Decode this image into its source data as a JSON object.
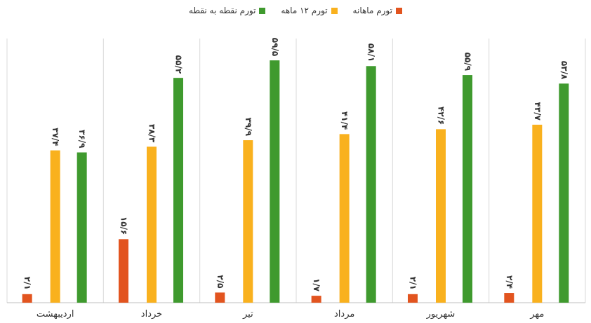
{
  "chart_data": {
    "type": "bar",
    "categories": [
      "اردیبهشت",
      "خرداد",
      "تیر",
      "مرداد",
      "شهریور",
      "مهر"
    ],
    "series": [
      {
        "name": "تورم ماهانه",
        "color": "#e2541f",
        "values": [
          2.1,
          15.6,
          2.5,
          1.7,
          2.1,
          2.4
        ],
        "labels": [
          "۲/۱",
          "۱۵/۶",
          "۲/۵",
          "۱/۷",
          "۲/۱",
          "۲/۴"
        ]
      },
      {
        "name": "تورم ۱۲ ماهه",
        "color": "#f9b11e",
        "values": [
          37.4,
          38.3,
          39.9,
          41.4,
          42.6,
          43.7
        ],
        "labels": [
          "۳۷/۴",
          "۳۸/۳",
          "۳۹/۹",
          "۴۱/۴",
          "۴۲/۶",
          "۴۳/۷"
        ]
      },
      {
        "name": "تورم نقطه به نقطه",
        "color": "#3f9a2e",
        "values": [
          36.9,
          55.2,
          59.5,
          58.1,
          55.9,
          53.8
        ],
        "labels": [
          "۳۶/۹",
          "۵۵/۲",
          "۵۹/۵",
          "۵۸/۱",
          "۵۵/۹",
          "۵۳/۸"
        ]
      }
    ],
    "legend_order_rtl": [
      "تورم ماهانه",
      "تورم ۱۲ ماهه",
      "تورم نقطه به نقطه"
    ],
    "ylim": [
      0,
      64
    ],
    "grid": "vertical separators",
    "legend": "top-center",
    "category_order": "left-to-right as shown"
  }
}
